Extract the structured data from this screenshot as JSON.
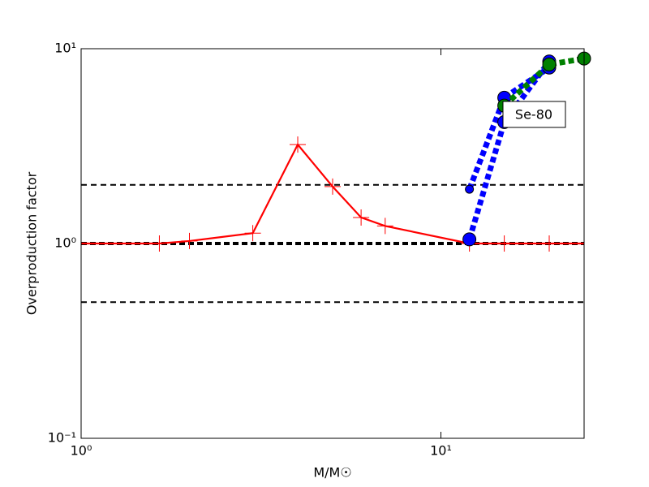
{
  "chart_data": {
    "type": "line",
    "xlabel": "M/M☉",
    "ylabel": "Overproduction factor",
    "xscale": "log",
    "yscale": "log",
    "xlim": [
      1,
      25
    ],
    "ylim": [
      0.1,
      10
    ],
    "xticks": [
      {
        "value": 1,
        "label": "10⁰"
      },
      {
        "value": 10,
        "label": "10¹"
      }
    ],
    "yticks": [
      {
        "value": 0.1,
        "label": "10⁻¹"
      },
      {
        "value": 1,
        "label": "10⁰"
      },
      {
        "value": 10,
        "label": "10¹"
      }
    ],
    "hlines": [
      0.5,
      1,
      2
    ],
    "series": [
      {
        "color": "#ff0000",
        "style": "solid",
        "marker": "plus",
        "x": [
          1,
          1.65,
          2,
          3,
          4,
          5,
          6,
          7,
          12,
          15,
          20,
          25
        ],
        "values": [
          1,
          1,
          1.03,
          1.13,
          3.22,
          1.96,
          1.36,
          1.23,
          1.0,
          1,
          1,
          1
        ]
      },
      {
        "color": "#0000ff",
        "style": "dotted",
        "marker": "circle",
        "x": [
          12,
          15,
          20
        ],
        "values": [
          1.9,
          5.6,
          8.0
        ]
      },
      {
        "color": "#0000ff",
        "style": "dotted",
        "marker": "circle",
        "x": [
          12,
          15,
          20
        ],
        "values": [
          1.05,
          4.2,
          8.6
        ]
      },
      {
        "color": "#008000",
        "style": "dotted",
        "marker": "circle",
        "x": [
          15,
          20,
          25
        ],
        "values": [
          5.1,
          8.3,
          8.9
        ]
      }
    ],
    "annotation": "Se-80"
  }
}
